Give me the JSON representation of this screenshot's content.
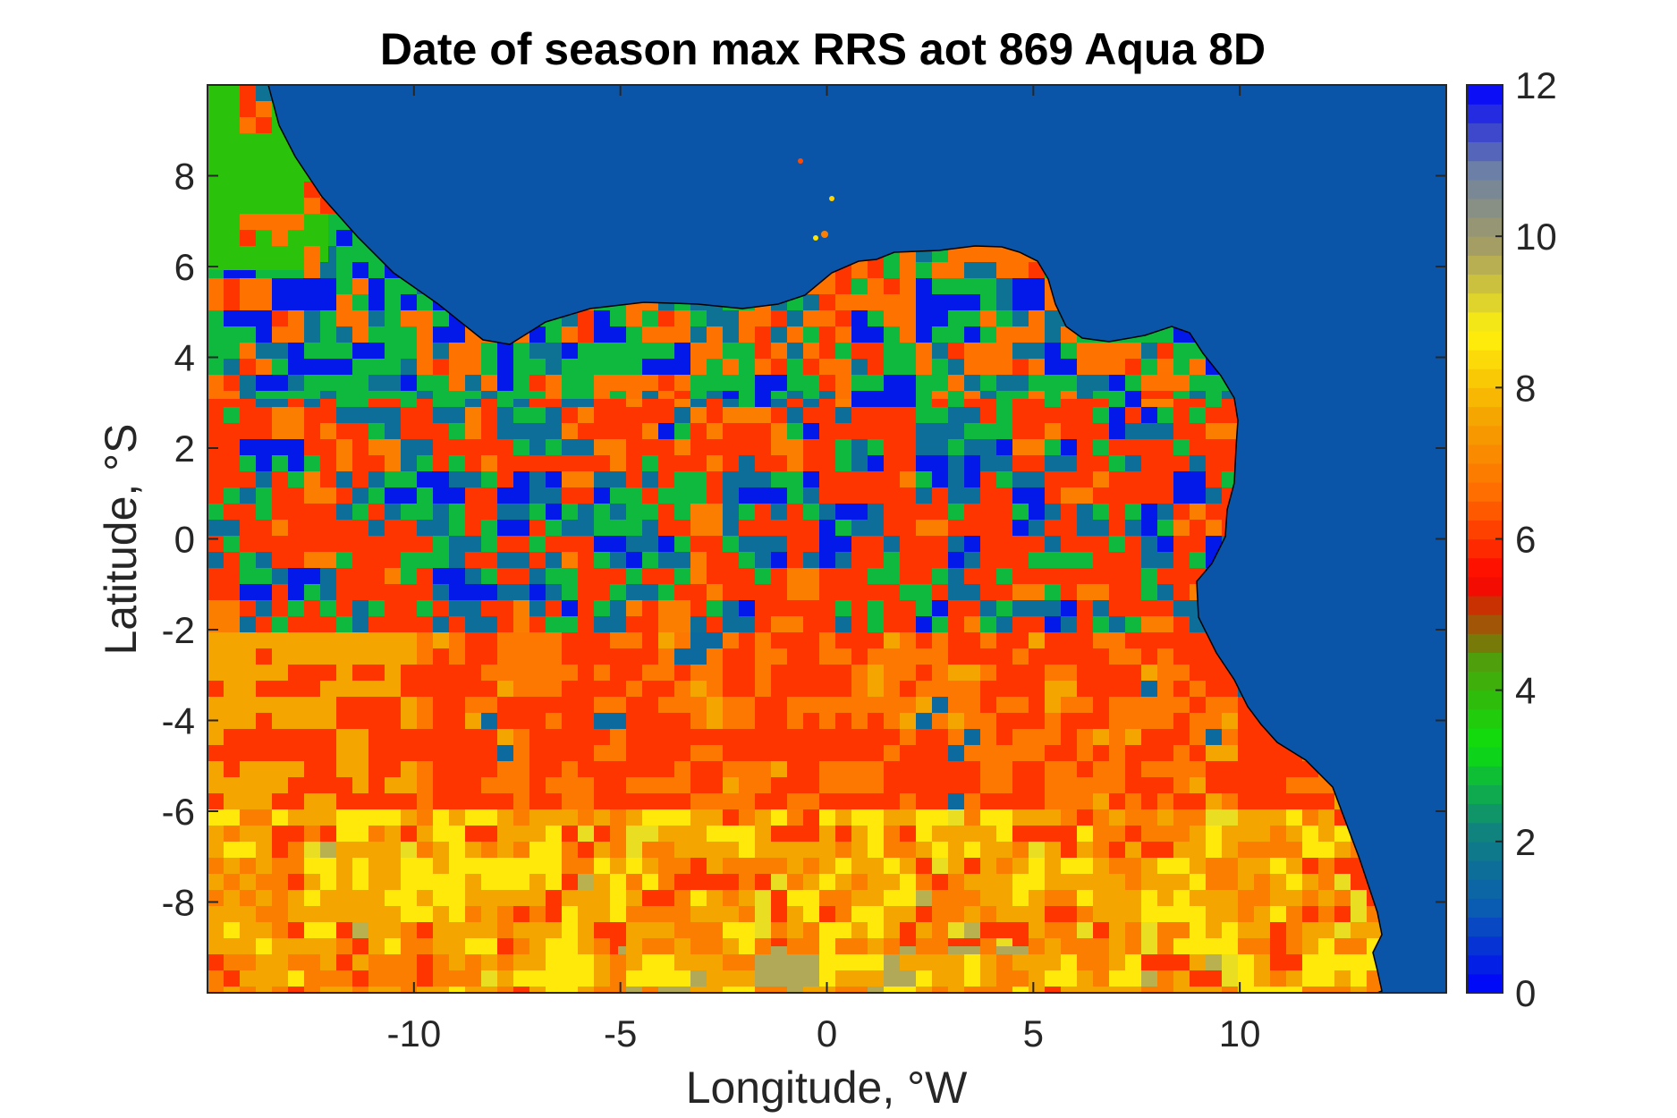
{
  "chart_data": {
    "type": "heatmap",
    "title": "Date of season max RRS aot 869 Aqua 8D",
    "xlabel": "Longitude, °W",
    "ylabel": "Latitude, °S",
    "xlim": [
      -15,
      15
    ],
    "ylim": [
      -10,
      10
    ],
    "xticks": [
      -10,
      -5,
      0,
      5,
      10
    ],
    "yticks": [
      -8,
      -6,
      -4,
      -2,
      0,
      2,
      4,
      6,
      8
    ],
    "colorbar": {
      "min": 0,
      "max": 12,
      "ticks": [
        0,
        2,
        4,
        6,
        8,
        10,
        12
      ]
    },
    "colors": {
      "ocean": "#0b55a8",
      "cmap": [
        "#0000ff",
        "#0a5ab4",
        "#11857c",
        "#0ce00c",
        "#4ca10b",
        "#ff0000",
        "#ff6a00",
        "#f5a700",
        "#fff20d",
        "#a8a060",
        "#6a7ea8",
        "#0000ff"
      ]
    },
    "land_value_bands": [
      {
        "lat": [
          3,
          10
        ],
        "lon": [
          -15,
          11
        ],
        "dominant_values": [
          0.5,
          3,
          6
        ]
      },
      {
        "lat": [
          -2,
          3
        ],
        "lon": [
          -15,
          10
        ],
        "dominant_values": [
          6,
          0.5,
          2
        ]
      },
      {
        "lat": [
          -6,
          -2
        ],
        "lon": [
          -15,
          12
        ],
        "dominant_values": [
          6,
          7
        ]
      },
      {
        "lat": [
          -10,
          -6
        ],
        "lon": [
          -15,
          13
        ],
        "dominant_values": [
          8,
          9,
          7
        ]
      }
    ]
  }
}
